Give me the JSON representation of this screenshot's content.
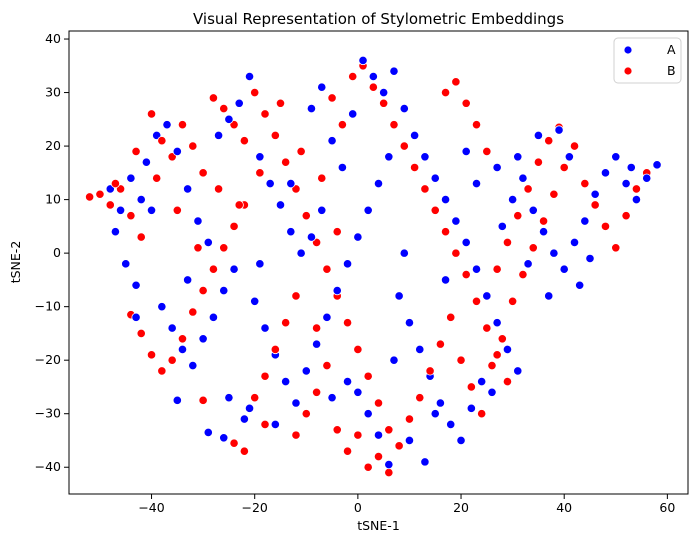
{
  "chart_data": {
    "type": "scatter",
    "title": "Visual Representation of Stylometric Embeddings",
    "xlabel": "tSNE-1",
    "ylabel": "tSNE-2",
    "xlim": [
      -56,
      64
    ],
    "ylim": [
      -45,
      41.5
    ],
    "xticks": [
      -40,
      -20,
      0,
      20,
      40,
      60
    ],
    "yticks": [
      -40,
      -30,
      -20,
      -10,
      0,
      10,
      20,
      30,
      40
    ],
    "grid": false,
    "legend_position": "top-right",
    "series": [
      {
        "name": "A",
        "color": "#0000ff",
        "points": [
          [
            -48,
            12
          ],
          [
            -46,
            8
          ],
          [
            -44,
            14
          ],
          [
            -42,
            10
          ],
          [
            -45,
            -2
          ],
          [
            -43,
            -6
          ],
          [
            -41,
            17
          ],
          [
            -39,
            22
          ],
          [
            -37,
            24
          ],
          [
            -35,
            19
          ],
          [
            -33,
            12
          ],
          [
            -31,
            6
          ],
          [
            -29,
            2
          ],
          [
            -38,
            -10
          ],
          [
            -36,
            -14
          ],
          [
            -34,
            -18
          ],
          [
            -32,
            -21
          ],
          [
            -30,
            -16
          ],
          [
            -28,
            -12
          ],
          [
            -26,
            -7
          ],
          [
            -24,
            -3
          ],
          [
            -27,
            22
          ],
          [
            -25,
            25
          ],
          [
            -23,
            28
          ],
          [
            -21,
            33
          ],
          [
            -19,
            18
          ],
          [
            -17,
            13
          ],
          [
            -15,
            9
          ],
          [
            -13,
            4
          ],
          [
            -11,
            0
          ],
          [
            -20,
            -9
          ],
          [
            -18,
            -14
          ],
          [
            -16,
            -19
          ],
          [
            -14,
            -24
          ],
          [
            -12,
            -28
          ],
          [
            -16,
            -32
          ],
          [
            -21,
            -29
          ],
          [
            -25,
            -27
          ],
          [
            -29,
            -33.5
          ],
          [
            -26,
            -34.5
          ],
          [
            -22,
            -31
          ],
          [
            -10,
            -22
          ],
          [
            -8,
            -17
          ],
          [
            -6,
            -12
          ],
          [
            -4,
            -7
          ],
          [
            -2,
            -2
          ],
          [
            0,
            3
          ],
          [
            2,
            8
          ],
          [
            4,
            13
          ],
          [
            6,
            18
          ],
          [
            -9,
            27
          ],
          [
            -7,
            31
          ],
          [
            -5,
            21
          ],
          [
            -3,
            16
          ],
          [
            1,
            36
          ],
          [
            3,
            33
          ],
          [
            5,
            30
          ],
          [
            7,
            34
          ],
          [
            9,
            27
          ],
          [
            11,
            22
          ],
          [
            13,
            18
          ],
          [
            15,
            14
          ],
          [
            17,
            10
          ],
          [
            19,
            6
          ],
          [
            21,
            2
          ],
          [
            23,
            -3
          ],
          [
            25,
            -8
          ],
          [
            27,
            -13
          ],
          [
            29,
            -18
          ],
          [
            31,
            -22
          ],
          [
            8,
            -8
          ],
          [
            10,
            -13
          ],
          [
            12,
            -18
          ],
          [
            14,
            -23
          ],
          [
            16,
            -28
          ],
          [
            18,
            -32
          ],
          [
            20,
            -35
          ],
          [
            22,
            -29
          ],
          [
            24,
            -24
          ],
          [
            26,
            -26
          ],
          [
            6,
            -39.5
          ],
          [
            4,
            -34
          ],
          [
            2,
            -30
          ],
          [
            0,
            -26
          ],
          [
            -2,
            -24
          ],
          [
            10,
            -35
          ],
          [
            28,
            5
          ],
          [
            30,
            10
          ],
          [
            32,
            14
          ],
          [
            34,
            8
          ],
          [
            36,
            4
          ],
          [
            38,
            0
          ],
          [
            40,
            -3
          ],
          [
            42,
            2
          ],
          [
            44,
            6
          ],
          [
            46,
            11
          ],
          [
            48,
            15
          ],
          [
            50,
            18
          ],
          [
            52,
            13
          ],
          [
            54,
            10
          ],
          [
            56,
            14
          ],
          [
            58,
            16.5
          ],
          [
            35,
            22
          ],
          [
            39,
            23
          ],
          [
            41,
            18
          ],
          [
            43,
            -6
          ],
          [
            37,
            -8
          ],
          [
            33,
            -2
          ],
          [
            31,
            18
          ],
          [
            27,
            16
          ],
          [
            -35,
            -27.5
          ],
          [
            -13,
            13
          ],
          [
            -9,
            3
          ],
          [
            -5,
            -27
          ],
          [
            13,
            -39
          ],
          [
            17,
            -5
          ],
          [
            21,
            19
          ],
          [
            -43,
            -12
          ],
          [
            -1,
            26
          ],
          [
            9,
            0
          ],
          [
            -40,
            8
          ],
          [
            -47,
            4
          ],
          [
            -33,
            -5
          ],
          [
            -19,
            -2
          ],
          [
            -7,
            8
          ],
          [
            7,
            -20
          ],
          [
            15,
            -30
          ],
          [
            23,
            13
          ],
          [
            45,
            -1
          ],
          [
            53,
            16
          ]
        ]
      },
      {
        "name": "B",
        "color": "#ff0000",
        "points": [
          [
            -52,
            10.5
          ],
          [
            -50,
            11
          ],
          [
            -48,
            9
          ],
          [
            -46,
            12
          ],
          [
            -44,
            7
          ],
          [
            -42,
            3
          ],
          [
            -40,
            26
          ],
          [
            -38,
            21
          ],
          [
            -36,
            18
          ],
          [
            -34,
            24
          ],
          [
            -32,
            20
          ],
          [
            -30,
            15
          ],
          [
            -28,
            29
          ],
          [
            -26,
            27
          ],
          [
            -24,
            24
          ],
          [
            -22,
            21
          ],
          [
            -20,
            30
          ],
          [
            -18,
            26
          ],
          [
            -16,
            22
          ],
          [
            -14,
            17
          ],
          [
            -12,
            12
          ],
          [
            -10,
            7
          ],
          [
            -8,
            2
          ],
          [
            -6,
            -3
          ],
          [
            -4,
            -8
          ],
          [
            -2,
            -13
          ],
          [
            0,
            -18
          ],
          [
            2,
            -23
          ],
          [
            4,
            -28
          ],
          [
            6,
            -33
          ],
          [
            -1,
            33
          ],
          [
            1,
            35
          ],
          [
            3,
            31
          ],
          [
            5,
            28
          ],
          [
            7,
            24
          ],
          [
            9,
            20
          ],
          [
            11,
            16
          ],
          [
            13,
            12
          ],
          [
            15,
            8
          ],
          [
            17,
            4
          ],
          [
            19,
            0
          ],
          [
            21,
            -4
          ],
          [
            23,
            -9
          ],
          [
            25,
            -14
          ],
          [
            27,
            -19
          ],
          [
            29,
            -24
          ],
          [
            -44,
            -11.5
          ],
          [
            -42,
            -15
          ],
          [
            -40,
            -19
          ],
          [
            -38,
            -22
          ],
          [
            -36,
            -20
          ],
          [
            -34,
            -16
          ],
          [
            -32,
            -11
          ],
          [
            -30,
            -7
          ],
          [
            -28,
            -3
          ],
          [
            -26,
            1
          ],
          [
            -24,
            5
          ],
          [
            -22,
            9
          ],
          [
            -20,
            -27
          ],
          [
            -18,
            -23
          ],
          [
            -16,
            -18
          ],
          [
            -14,
            -13
          ],
          [
            -12,
            -8
          ],
          [
            -10,
            -30
          ],
          [
            -8,
            -26
          ],
          [
            -6,
            -21
          ],
          [
            -4,
            -33
          ],
          [
            -2,
            -37
          ],
          [
            0,
            -34
          ],
          [
            2,
            -40
          ],
          [
            4,
            -38
          ],
          [
            6,
            -41
          ],
          [
            8,
            -36
          ],
          [
            10,
            -31
          ],
          [
            12,
            -27
          ],
          [
            14,
            -22
          ],
          [
            16,
            -17
          ],
          [
            18,
            -12
          ],
          [
            20,
            -20
          ],
          [
            22,
            -25
          ],
          [
            24,
            -30
          ],
          [
            26,
            -21
          ],
          [
            28,
            -16
          ],
          [
            30,
            -9
          ],
          [
            32,
            -4
          ],
          [
            34,
            1
          ],
          [
            36,
            6
          ],
          [
            38,
            11
          ],
          [
            40,
            16
          ],
          [
            42,
            20
          ],
          [
            44,
            13
          ],
          [
            46,
            9
          ],
          [
            48,
            5
          ],
          [
            50,
            1
          ],
          [
            52,
            7
          ],
          [
            54,
            12
          ],
          [
            56,
            15
          ],
          [
            58,
            16.5
          ],
          [
            39,
            23.5
          ],
          [
            37,
            21
          ],
          [
            35,
            17
          ],
          [
            33,
            12
          ],
          [
            31,
            7
          ],
          [
            29,
            2
          ],
          [
            27,
            -3
          ],
          [
            25,
            19
          ],
          [
            23,
            24
          ],
          [
            21,
            28
          ],
          [
            19,
            32
          ],
          [
            17,
            30
          ],
          [
            -5,
            29
          ],
          [
            -3,
            24
          ],
          [
            -7,
            14
          ],
          [
            -11,
            19
          ],
          [
            -15,
            28
          ],
          [
            -19,
            15
          ],
          [
            -23,
            9
          ],
          [
            -27,
            12
          ],
          [
            -31,
            1
          ],
          [
            -35,
            8
          ],
          [
            -39,
            14
          ],
          [
            -43,
            19
          ],
          [
            -47,
            13
          ],
          [
            -30,
            -27.5
          ],
          [
            -24,
            -35.5
          ],
          [
            -22,
            -37
          ],
          [
            -18,
            -32
          ],
          [
            -12,
            -34
          ],
          [
            -8,
            -14
          ],
          [
            -4,
            4
          ]
        ]
      }
    ]
  }
}
